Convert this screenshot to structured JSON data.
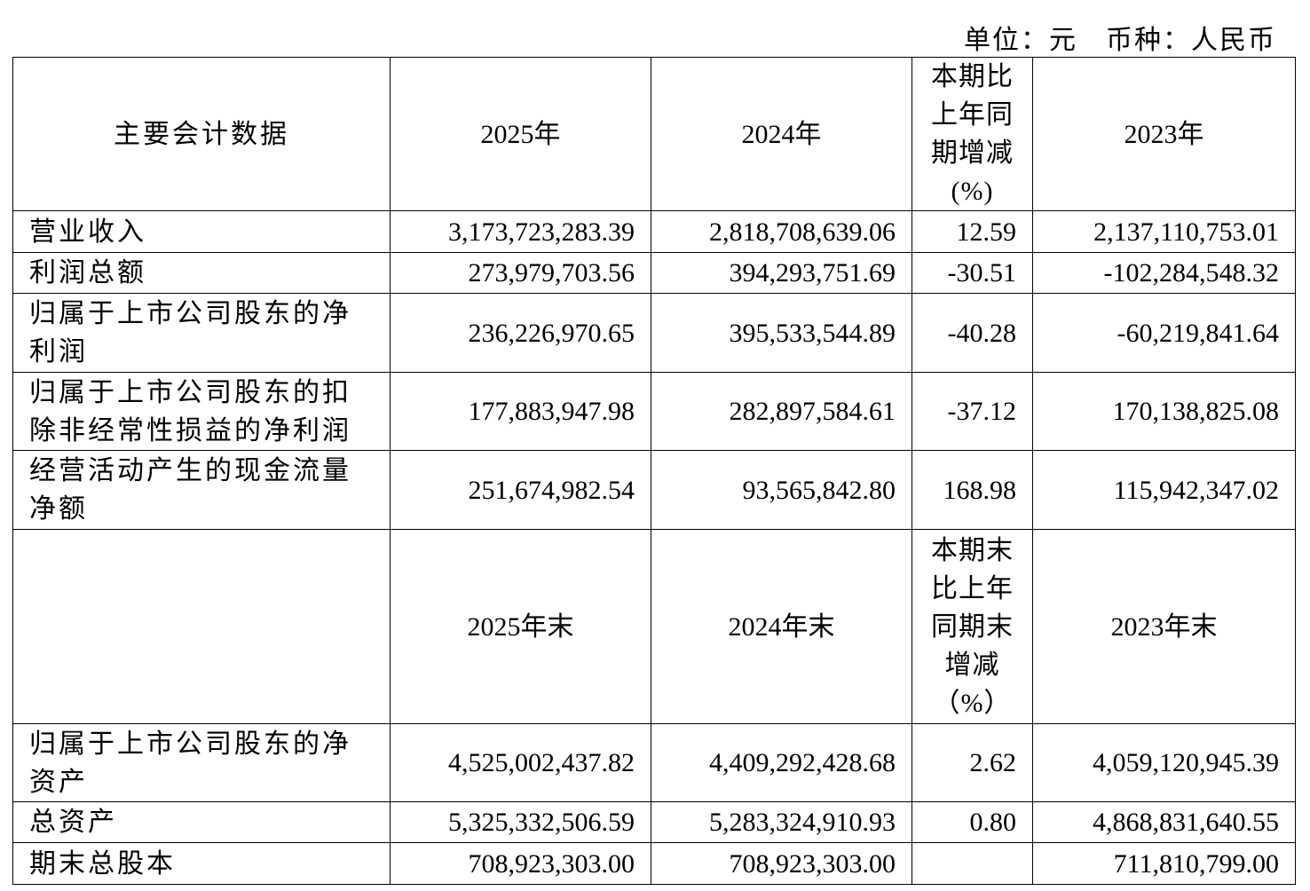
{
  "unit_line": "单位：元　币种：人民币",
  "table": {
    "header": {
      "label": "主要会计数据",
      "current": "2025年",
      "previous": "2024年",
      "change": "本期比上年同期增减(%)",
      "earlier": "2023年"
    },
    "rows": [
      {
        "label": "营业收入",
        "current": "3,173,723,283.39",
        "previous": "2,818,708,639.06",
        "change": "12.59",
        "earlier": "2,137,110,753.01"
      },
      {
        "label": "利润总额",
        "current": "273,979,703.56",
        "previous": "394,293,751.69",
        "change": "-30.51",
        "earlier": "-102,284,548.32"
      },
      {
        "label": "归属于上市公司股东的净利润",
        "current": "236,226,970.65",
        "previous": "395,533,544.89",
        "change": "-40.28",
        "earlier": "-60,219,841.64"
      },
      {
        "label": "归属于上市公司股东的扣除非经常性损益的净利润",
        "current": "177,883,947.98",
        "previous": "282,897,584.61",
        "change": "-37.12",
        "earlier": "170,138,825.08"
      },
      {
        "label": "经营活动产生的现金流量净额",
        "current": "251,674,982.54",
        "previous": "93,565,842.80",
        "change": "168.98",
        "earlier": "115,942,347.02"
      }
    ],
    "header2": {
      "current": "2025年末",
      "previous": "2024年末",
      "change": "本期末比上年同期末增减（%）",
      "earlier": "2023年末"
    },
    "rows2": [
      {
        "label": "归属于上市公司股东的净资产",
        "current": "4,525,002,437.82",
        "previous": "4,409,292,428.68",
        "change": "2.62",
        "earlier": "4,059,120,945.39"
      },
      {
        "label": "总资产",
        "current": "5,325,332,506.59",
        "previous": "5,283,324,910.93",
        "change": "0.80",
        "earlier": "4,868,831,640.55"
      },
      {
        "label": "期末总股本",
        "current": "708,923,303.00",
        "previous": "708,923,303.00",
        "earlier": "711,810,799.00"
      }
    ]
  }
}
